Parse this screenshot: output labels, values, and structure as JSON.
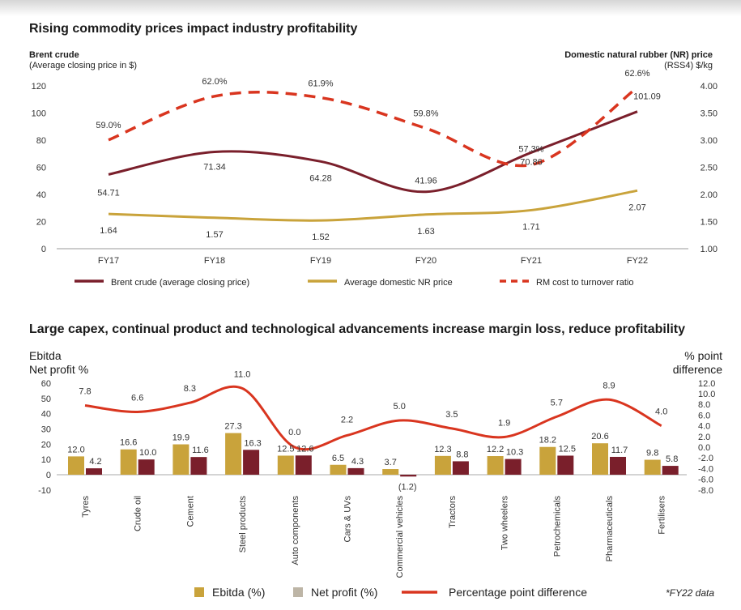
{
  "chart_data": [
    {
      "type": "line",
      "title": "Rising commodity prices impact industry profitability",
      "left_axis": {
        "title": "Brent crude",
        "subtitle": "(Average closing price in $)",
        "ticks": [
          "0",
          "20",
          "40",
          "60",
          "80",
          "100",
          "120"
        ],
        "range": [
          0,
          120
        ]
      },
      "right_axis": {
        "title": "Domestic natural rubber (NR) price",
        "subtitle": "(RSS4) $/kg",
        "ticks": [
          "1.00",
          "1.50",
          "2.00",
          "2.50",
          "3.00",
          "3.50",
          "4.00"
        ],
        "range": [
          1.0,
          4.0
        ]
      },
      "categories": [
        "FY17",
        "FY18",
        "FY19",
        "FY20",
        "FY21",
        "FY22"
      ],
      "series": [
        {
          "name": "Brent crude (average closing price)",
          "axis": "left",
          "color": "#7a1f2b",
          "style": "solid",
          "values": [
            54.71,
            71.34,
            64.28,
            41.96,
            70.86,
            101.09
          ],
          "labels": [
            "54.71",
            "71.34",
            "64.28",
            "41.96",
            "70.86",
            "101.09"
          ]
        },
        {
          "name": "Average domestic NR price",
          "axis": "right",
          "color": "#c9a33b",
          "style": "solid",
          "values": [
            1.64,
            1.57,
            1.52,
            1.63,
            1.71,
            2.07
          ],
          "labels": [
            "1.64",
            "1.57",
            "1.52",
            "1.63",
            "1.71",
            "2.07"
          ]
        },
        {
          "name": "RM cost to turnover ratio",
          "axis": "hidden",
          "color": "#d9351f",
          "style": "dashed",
          "values": [
            59.0,
            62.0,
            61.9,
            59.8,
            57.3,
            62.6
          ],
          "labels": [
            "59.0%",
            "62.0%",
            "61.9%",
            "59.8%",
            "57.3%",
            "62.6%"
          ]
        }
      ],
      "legend_position": "bottom",
      "grid": false
    },
    {
      "type": "bar",
      "title": "Large capex, continual product and technological advancements increase margin loss, reduce profitability",
      "left_axis": {
        "title_lines": [
          "Ebitda",
          "Net profit %"
        ],
        "ticks": [
          "-10",
          "0",
          "10",
          "20",
          "30",
          "40",
          "50",
          "60"
        ],
        "range": [
          -10,
          60
        ]
      },
      "right_axis": {
        "title_lines": [
          "% point",
          "difference"
        ],
        "ticks": [
          "-8.0",
          "-6.0",
          "-4.0",
          "-2.0",
          "0.0",
          "2.0",
          "4.0",
          "6.0",
          "8.0",
          "10.0",
          "12.0"
        ],
        "range": [
          -8,
          12
        ]
      },
      "categories": [
        "Tyres",
        "Crude oil",
        "Cement",
        "Steel products",
        "Auto components",
        "Cars & UVs",
        "Commercial vehicles",
        "Tractors",
        "Two wheelers",
        "Petrochemicals",
        "Pharmaceuticals",
        "Fertilisers"
      ],
      "series": [
        {
          "name": "Ebitda (%)",
          "kind": "bar",
          "axis": "left",
          "color": "#c9a33b",
          "values": [
            12.0,
            16.6,
            19.9,
            27.3,
            12.5,
            6.5,
            3.7,
            12.3,
            12.2,
            18.2,
            20.6,
            9.8
          ],
          "labels": [
            "12.0",
            "16.6",
            "19.9",
            "27.3",
            "12.5",
            "6.5",
            "3.7",
            "12.3",
            "12.2",
            "18.2",
            "20.6",
            "9.8"
          ]
        },
        {
          "name": "Net profit (%)",
          "kind": "bar",
          "axis": "left",
          "color": "#7a1f2b",
          "values": [
            4.2,
            10.0,
            11.6,
            16.3,
            12.6,
            4.3,
            -1.2,
            8.8,
            10.3,
            12.5,
            11.7,
            5.8
          ],
          "labels": [
            "4.2",
            "10.0",
            "11.6",
            "16.3",
            "12.6",
            "4.3",
            "(1.2)",
            "8.8",
            "10.3",
            "12.5",
            "11.7",
            "5.8"
          ]
        },
        {
          "name": "Percentage point difference",
          "kind": "line",
          "axis": "right",
          "color": "#d9351f",
          "values": [
            7.8,
            6.6,
            8.3,
            11.0,
            0.0,
            2.2,
            5.0,
            3.5,
            1.9,
            5.7,
            8.9,
            4.0
          ],
          "labels": [
            "7.8",
            "6.6",
            "8.3",
            "11.0",
            "0.0",
            "2.2",
            "5.0",
            "3.5",
            "1.9",
            "5.7",
            "8.9",
            "4.0"
          ]
        }
      ],
      "legend_position": "bottom",
      "grid": false,
      "legend_swatch_colors": [
        "#c9a33b",
        "#bdb5a6",
        "#d9351f"
      ],
      "footnote": "*FY22 data"
    }
  ]
}
